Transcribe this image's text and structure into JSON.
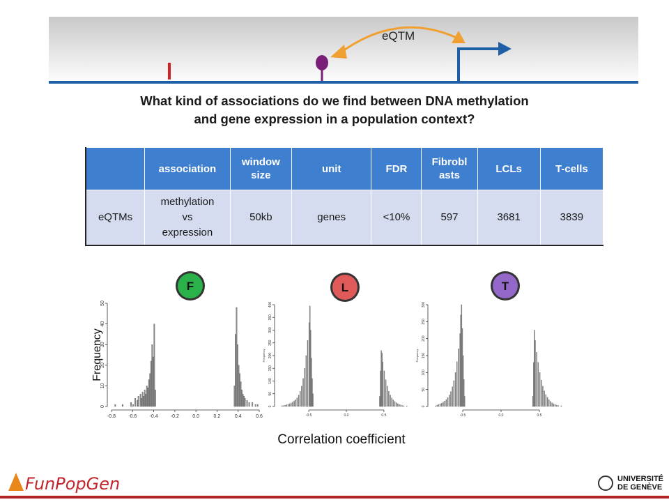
{
  "banner": {
    "label": "eQTM"
  },
  "question": {
    "line1": "What kind of associations do we find between DNA methylation",
    "line2": "and gene expression in a population context?"
  },
  "table": {
    "headers": [
      "",
      "association",
      "window size",
      "unit",
      "FDR",
      "Fibroblasts",
      "LCLs",
      "T-cells"
    ],
    "header_display": [
      "",
      "association",
      "window\nsize",
      "unit",
      "FDR",
      "Fibrobl\nasts",
      "LCLs",
      "T-cells"
    ],
    "row": [
      "eQTMs",
      "methylation vs expression",
      "50kb",
      "genes",
      "<10%",
      "597",
      "3681",
      "3839"
    ],
    "row_display": [
      "eQTMs",
      "methylation\nvs\nexpression",
      "50kb",
      "genes",
      "<10%",
      "597",
      "3681",
      "3839"
    ]
  },
  "chart_data": [
    {
      "type": "bar",
      "badge": "F",
      "badge_color": "#2bb14a",
      "ylabel": "Frequency",
      "xlabel": "Correlation coefficient",
      "xlim": [
        -0.8,
        0.6
      ],
      "ylim": [
        0,
        50
      ],
      "xticks": [
        "-0.8",
        "-0.6",
        "-0.4",
        "-0.2",
        "0.0",
        "0.2",
        "0.4",
        "0.6"
      ],
      "yticks": [
        "0",
        "10",
        "20",
        "30",
        "40",
        "50"
      ],
      "bin_width": 0.01,
      "bins": [
        [
          -0.77,
          1
        ],
        [
          -0.7,
          1
        ],
        [
          -0.62,
          2
        ],
        [
          -0.6,
          1
        ],
        [
          -0.58,
          4
        ],
        [
          -0.56,
          3
        ],
        [
          -0.55,
          5
        ],
        [
          -0.53,
          6
        ],
        [
          -0.52,
          4
        ],
        [
          -0.51,
          7
        ],
        [
          -0.5,
          5
        ],
        [
          -0.49,
          8
        ],
        [
          -0.48,
          6
        ],
        [
          -0.47,
          10
        ],
        [
          -0.46,
          9
        ],
        [
          -0.45,
          13
        ],
        [
          -0.44,
          16
        ],
        [
          -0.43,
          22
        ],
        [
          -0.42,
          30
        ],
        [
          -0.41,
          24
        ],
        [
          -0.4,
          40
        ],
        [
          -0.39,
          8
        ],
        [
          0.36,
          10
        ],
        [
          0.37,
          35
        ],
        [
          0.38,
          48
        ],
        [
          0.39,
          30
        ],
        [
          0.4,
          20
        ],
        [
          0.41,
          16
        ],
        [
          0.42,
          12
        ],
        [
          0.43,
          8
        ],
        [
          0.44,
          6
        ],
        [
          0.45,
          5
        ],
        [
          0.46,
          4
        ],
        [
          0.48,
          3
        ],
        [
          0.5,
          2
        ],
        [
          0.53,
          2
        ],
        [
          0.56,
          1
        ],
        [
          0.58,
          1
        ]
      ]
    },
    {
      "type": "bar",
      "badge": "L",
      "badge_color": "#e05a5a",
      "ylabel": "Frequency",
      "xlabel": "Correlation coefficient",
      "xlim": [
        -0.9,
        0.9
      ],
      "ylim": [
        0,
        400
      ],
      "xticks": [
        "-0.5",
        "0.0",
        "0.5"
      ],
      "yticks": [
        "0",
        "50",
        "100",
        "150",
        "200",
        "250",
        "300",
        "350",
        "400"
      ],
      "bin_width": 0.01,
      "bins": [
        [
          -0.86,
          3
        ],
        [
          -0.84,
          4
        ],
        [
          -0.82,
          5
        ],
        [
          -0.8,
          7
        ],
        [
          -0.78,
          9
        ],
        [
          -0.76,
          11
        ],
        [
          -0.74,
          14
        ],
        [
          -0.72,
          17
        ],
        [
          -0.7,
          22
        ],
        [
          -0.68,
          27
        ],
        [
          -0.66,
          34
        ],
        [
          -0.64,
          45
        ],
        [
          -0.62,
          60
        ],
        [
          -0.6,
          80
        ],
        [
          -0.58,
          110
        ],
        [
          -0.56,
          150
        ],
        [
          -0.54,
          200
        ],
        [
          -0.52,
          260
        ],
        [
          -0.5,
          330
        ],
        [
          -0.49,
          395
        ],
        [
          -0.48,
          300
        ],
        [
          -0.47,
          190
        ],
        [
          -0.46,
          110
        ],
        [
          -0.45,
          50
        ],
        [
          0.44,
          40
        ],
        [
          0.45,
          140
        ],
        [
          0.46,
          220
        ],
        [
          0.47,
          210
        ],
        [
          0.48,
          175
        ],
        [
          0.5,
          140
        ],
        [
          0.52,
          105
        ],
        [
          0.54,
          80
        ],
        [
          0.56,
          60
        ],
        [
          0.58,
          45
        ],
        [
          0.6,
          34
        ],
        [
          0.62,
          26
        ],
        [
          0.64,
          20
        ],
        [
          0.66,
          15
        ],
        [
          0.68,
          11
        ],
        [
          0.7,
          8
        ],
        [
          0.72,
          6
        ],
        [
          0.74,
          4
        ],
        [
          0.76,
          3
        ],
        [
          0.8,
          2
        ]
      ]
    },
    {
      "type": "bar",
      "badge": "T",
      "badge_color": "#9368c8",
      "ylabel": "Frequency",
      "xlabel": "Correlation coefficient",
      "xlim": [
        -0.9,
        0.9
      ],
      "ylim": [
        0,
        300
      ],
      "xticks": [
        "-0.5",
        "0.0",
        "0.5"
      ],
      "yticks": [
        "0",
        "50",
        "100",
        "150",
        "200",
        "250",
        "300"
      ],
      "bin_width": 0.01,
      "bins": [
        [
          -0.86,
          2
        ],
        [
          -0.84,
          4
        ],
        [
          -0.82,
          6
        ],
        [
          -0.8,
          8
        ],
        [
          -0.78,
          10
        ],
        [
          -0.76,
          13
        ],
        [
          -0.74,
          16
        ],
        [
          -0.72,
          20
        ],
        [
          -0.7,
          26
        ],
        [
          -0.68,
          34
        ],
        [
          -0.66,
          44
        ],
        [
          -0.64,
          58
        ],
        [
          -0.62,
          76
        ],
        [
          -0.6,
          100
        ],
        [
          -0.58,
          132
        ],
        [
          -0.56,
          170
        ],
        [
          -0.54,
          215
        ],
        [
          -0.53,
          270
        ],
        [
          -0.52,
          300
        ],
        [
          -0.51,
          230
        ],
        [
          -0.5,
          150
        ],
        [
          -0.49,
          80
        ],
        [
          -0.48,
          30
        ],
        [
          0.41,
          30
        ],
        [
          0.42,
          130
        ],
        [
          0.43,
          225
        ],
        [
          0.44,
          195
        ],
        [
          0.46,
          160
        ],
        [
          0.48,
          130
        ],
        [
          0.5,
          100
        ],
        [
          0.52,
          78
        ],
        [
          0.54,
          60
        ],
        [
          0.56,
          46
        ],
        [
          0.58,
          35
        ],
        [
          0.6,
          27
        ],
        [
          0.62,
          20
        ],
        [
          0.64,
          15
        ],
        [
          0.66,
          11
        ],
        [
          0.68,
          8
        ],
        [
          0.7,
          6
        ],
        [
          0.72,
          4
        ],
        [
          0.74,
          3
        ],
        [
          0.78,
          2
        ]
      ]
    }
  ],
  "footer": {
    "logo_text": "FunPopGen",
    "university_line1": "UNIVERSITÉ",
    "university_line2": "DE GENÈVE"
  },
  "colors": {
    "banner_line": "#1f5fa8",
    "header_bg": "#3f7fd0",
    "row_bg": "#d5dcef",
    "accent_red": "#b22226"
  }
}
